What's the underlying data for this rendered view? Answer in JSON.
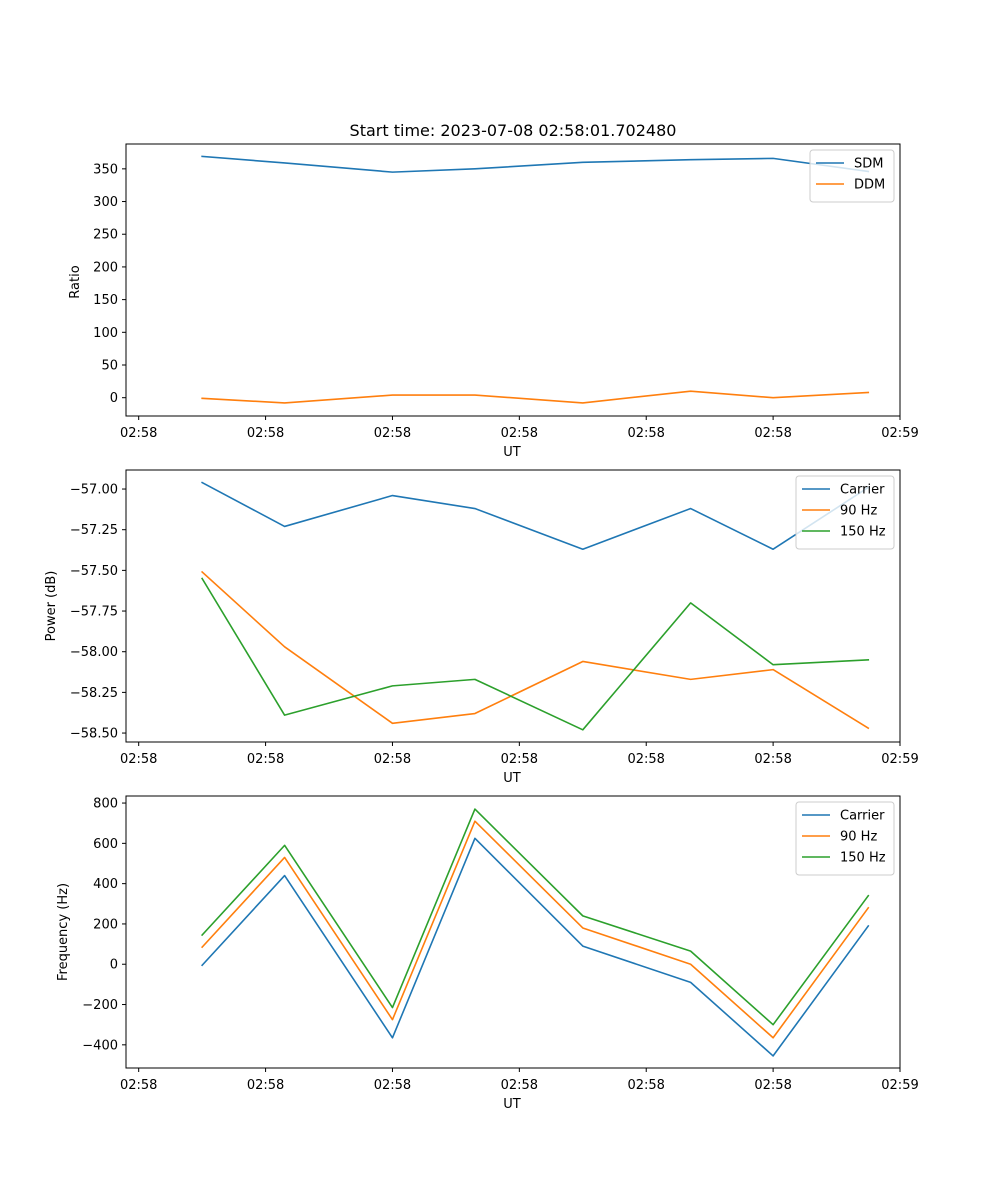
{
  "chart_data": [
    {
      "type": "line",
      "title": "Start time: 2023-07-08 02:58:01.702480",
      "xlabel": "UT",
      "ylabel": "Ratio",
      "x_tick_labels": [
        "02:58",
        "02:58",
        "02:58",
        "02:58",
        "02:58",
        "02:58",
        "02:59"
      ],
      "x": [
        0.5,
        1.15,
        2.0,
        2.65,
        3.5,
        4.35,
        5.0,
        5.75
      ],
      "xlim": [
        -0.1,
        6.0
      ],
      "ylim": [
        -28,
        388
      ],
      "yticks": [
        0,
        50,
        100,
        150,
        200,
        250,
        300,
        350
      ],
      "legend": "top-right",
      "series": [
        {
          "name": "SDM",
          "color": "#1f77b4",
          "values": [
            369,
            359,
            345,
            350,
            360,
            364,
            366,
            346
          ]
        },
        {
          "name": "DDM",
          "color": "#ff7f0e",
          "values": [
            -1,
            -8,
            4,
            4,
            -8,
            10,
            0,
            8
          ]
        }
      ]
    },
    {
      "type": "line",
      "title": "",
      "xlabel": "UT",
      "ylabel": "Power (dB)",
      "x_tick_labels": [
        "02:58",
        "02:58",
        "02:58",
        "02:58",
        "02:58",
        "02:58",
        "02:59"
      ],
      "x": [
        0.5,
        1.15,
        2.0,
        2.65,
        3.5,
        4.35,
        5.0,
        5.75
      ],
      "xlim": [
        -0.1,
        6.0
      ],
      "ylim": [
        -58.555,
        -56.883
      ],
      "yticks": [
        -58.5,
        -58.25,
        -58.0,
        -57.75,
        -57.5,
        -57.25,
        -57.0
      ],
      "ytick_labels": [
        "−58.50",
        "−58.25",
        "−58.00",
        "−57.75",
        "−57.50",
        "−57.25",
        "−57.00"
      ],
      "legend": "top-right",
      "series": [
        {
          "name": "Carrier",
          "color": "#1f77b4",
          "values": [
            -56.96,
            -57.23,
            -57.04,
            -57.12,
            -57.37,
            -57.12,
            -57.37,
            -56.99
          ]
        },
        {
          "name": "90 Hz",
          "color": "#ff7f0e",
          "values": [
            -57.51,
            -57.97,
            -58.44,
            -58.38,
            -58.06,
            -58.17,
            -58.11,
            -58.47
          ]
        },
        {
          "name": "150 Hz",
          "color": "#2ca02c",
          "values": [
            -57.55,
            -58.39,
            -58.21,
            -58.17,
            -58.48,
            -57.7,
            -58.08,
            -58.05
          ]
        }
      ]
    },
    {
      "type": "line",
      "title": "",
      "xlabel": "UT",
      "ylabel": "Frequency (Hz)",
      "x_tick_labels": [
        "02:58",
        "02:58",
        "02:58",
        "02:58",
        "02:58",
        "02:58",
        "02:59"
      ],
      "x": [
        0.5,
        1.15,
        2.0,
        2.65,
        3.5,
        4.35,
        5.0,
        5.75
      ],
      "xlim": [
        -0.1,
        6.0
      ],
      "ylim": [
        -515,
        835
      ],
      "yticks": [
        -400,
        -200,
        0,
        200,
        400,
        600,
        800
      ],
      "ytick_labels": [
        "−400",
        "−200",
        "0",
        "200",
        "400",
        "600",
        "800"
      ],
      "legend": "top-right",
      "series": [
        {
          "name": "Carrier",
          "color": "#1f77b4",
          "values": [
            -5,
            440,
            -365,
            625,
            90,
            -90,
            -455,
            190
          ]
        },
        {
          "name": "90 Hz",
          "color": "#ff7f0e",
          "values": [
            85,
            530,
            -275,
            710,
            180,
            0,
            -365,
            280
          ]
        },
        {
          "name": "150 Hz",
          "color": "#2ca02c",
          "values": [
            145,
            590,
            -215,
            770,
            240,
            65,
            -300,
            340
          ]
        }
      ]
    }
  ]
}
